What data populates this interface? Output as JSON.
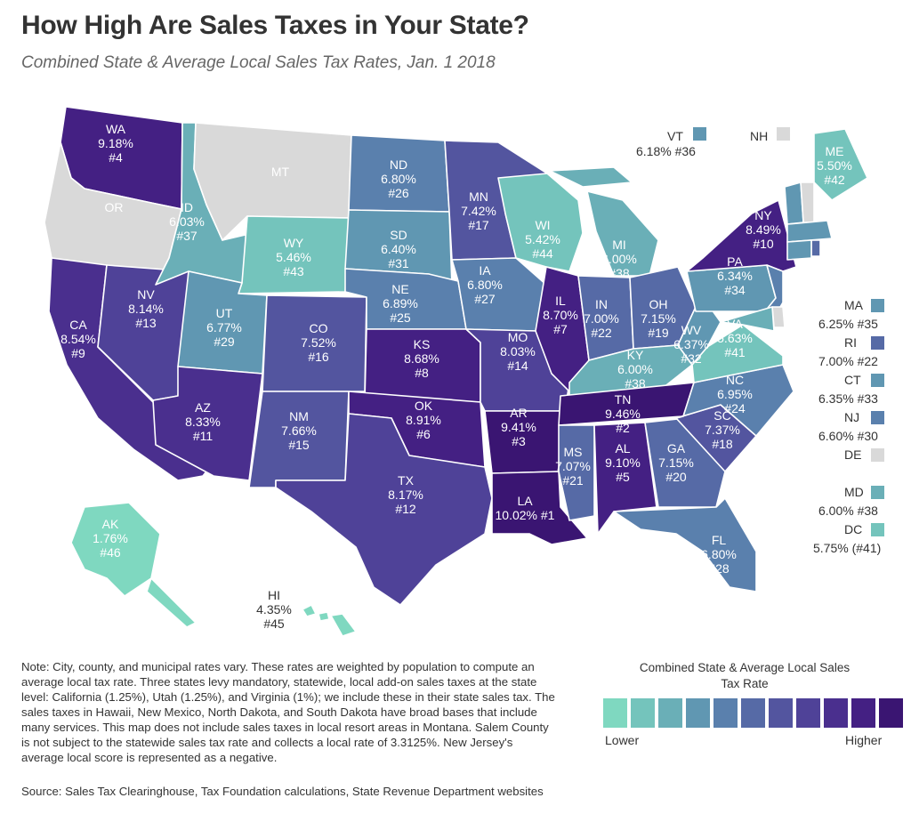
{
  "title": "How High Are Sales Taxes in Your State?",
  "subtitle": "Combined State & Average Local Sales Tax Rates, Jan. 1 2018",
  "note": "Note: City, county, and municipal rates vary. These rates are weighted by population to compute an average local tax rate. Three states levy mandatory, statewide, local add-on sales taxes at the state level: California (1.25%), Utah (1.25%), and Virginia (1%); we include these in their state sales tax. The sales taxes in Hawaii, New Mexico, North Dakota, and South Dakota have broad bases that include many services. This map does not include sales taxes in local resort areas in Montana. Salem County is not subject to the statewide sales tax rate and collects a local rate of 3.3125%. New Jersey's average local score is represented as a negative.",
  "source": "Source: Sales Tax Clearinghouse, Tax Foundation calculations, State Revenue Department websites",
  "legend": {
    "title": "Combined State & Average Local Sales Tax Rate",
    "low": "Lower",
    "high": "Higher",
    "colors": [
      "#7fd8c0",
      "#74c4bc",
      "#6aafb7",
      "#6097b2",
      "#5a80ad",
      "#566aa6",
      "#53559f",
      "#4f4298",
      "#4a2f8e",
      "#442083",
      "#3a1572"
    ]
  },
  "no_tax_color": "#d9d9d9",
  "states": [
    {
      "abbr": "WA",
      "rate": "9.18%",
      "rank": "#4",
      "level": 9
    },
    {
      "abbr": "OR",
      "rate": "",
      "rank": "",
      "level": -1
    },
    {
      "abbr": "CA",
      "rate": "8.54%",
      "rank": "#9",
      "level": 8
    },
    {
      "abbr": "NV",
      "rate": "8.14%",
      "rank": "#13",
      "level": 7
    },
    {
      "abbr": "ID",
      "rate": "6.03%",
      "rank": "#37",
      "level": 2
    },
    {
      "abbr": "MT",
      "rate": "",
      "rank": "",
      "level": -1
    },
    {
      "abbr": "WY",
      "rate": "5.46%",
      "rank": "#43",
      "level": 1
    },
    {
      "abbr": "UT",
      "rate": "6.77%",
      "rank": "#29",
      "level": 3
    },
    {
      "abbr": "AZ",
      "rate": "8.33%",
      "rank": "#11",
      "level": 8
    },
    {
      "abbr": "CO",
      "rate": "7.52%",
      "rank": "#16",
      "level": 6
    },
    {
      "abbr": "NM",
      "rate": "7.66%",
      "rank": "#15",
      "level": 6
    },
    {
      "abbr": "ND",
      "rate": "6.80%",
      "rank": "#26",
      "level": 4
    },
    {
      "abbr": "SD",
      "rate": "6.40%",
      "rank": "#31",
      "level": 3
    },
    {
      "abbr": "NE",
      "rate": "6.89%",
      "rank": "#25",
      "level": 4
    },
    {
      "abbr": "KS",
      "rate": "8.68%",
      "rank": "#8",
      "level": 9
    },
    {
      "abbr": "OK",
      "rate": "8.91%",
      "rank": "#6",
      "level": 9
    },
    {
      "abbr": "TX",
      "rate": "8.17%",
      "rank": "#12",
      "level": 7
    },
    {
      "abbr": "MN",
      "rate": "7.42%",
      "rank": "#17",
      "level": 6
    },
    {
      "abbr": "IA",
      "rate": "6.80%",
      "rank": "#27",
      "level": 4
    },
    {
      "abbr": "MO",
      "rate": "8.03%",
      "rank": "#14",
      "level": 7
    },
    {
      "abbr": "AR",
      "rate": "9.41%",
      "rank": "#3",
      "level": 10
    },
    {
      "abbr": "LA",
      "rate": "10.02%",
      "rank": "#1",
      "level": 10
    },
    {
      "abbr": "WI",
      "rate": "5.42%",
      "rank": "#44",
      "level": 1
    },
    {
      "abbr": "IL",
      "rate": "8.70%",
      "rank": "#7",
      "level": 9
    },
    {
      "abbr": "MI",
      "rate": "6.00%",
      "rank": "#38",
      "level": 2
    },
    {
      "abbr": "IN",
      "rate": "7.00%",
      "rank": "#22",
      "level": 5
    },
    {
      "abbr": "OH",
      "rate": "7.15%",
      "rank": "#19",
      "level": 5
    },
    {
      "abbr": "KY",
      "rate": "6.00%",
      "rank": "#38",
      "level": 2
    },
    {
      "abbr": "TN",
      "rate": "9.46%",
      "rank": "#2",
      "level": 10
    },
    {
      "abbr": "MS",
      "rate": "7.07%",
      "rank": "#21",
      "level": 5
    },
    {
      "abbr": "AL",
      "rate": "9.10%",
      "rank": "#5",
      "level": 9
    },
    {
      "abbr": "GA",
      "rate": "7.15%",
      "rank": "#20",
      "level": 5
    },
    {
      "abbr": "FL",
      "rate": "6.80%",
      "rank": "#28",
      "level": 4
    },
    {
      "abbr": "SC",
      "rate": "7.37%",
      "rank": "#18",
      "level": 6
    },
    {
      "abbr": "NC",
      "rate": "6.95%",
      "rank": "#24",
      "level": 4
    },
    {
      "abbr": "VA",
      "rate": "5.63%",
      "rank": "#41",
      "level": 1
    },
    {
      "abbr": "WV",
      "rate": "6.37%",
      "rank": "#32",
      "level": 3
    },
    {
      "abbr": "PA",
      "rate": "6.34%",
      "rank": "#34",
      "level": 3
    },
    {
      "abbr": "NY",
      "rate": "8.49%",
      "rank": "#10",
      "level": 9
    },
    {
      "abbr": "ME",
      "rate": "5.50%",
      "rank": "#42",
      "level": 1
    },
    {
      "abbr": "AK",
      "rate": "1.76%",
      "rank": "#46",
      "level": 0
    },
    {
      "abbr": "HI",
      "rate": "4.35%",
      "rank": "#45",
      "level": 0
    }
  ],
  "small_states": [
    {
      "abbr": "VT",
      "value": "6.18% #36",
      "level": 3
    },
    {
      "abbr": "NH",
      "value": "",
      "level": -1
    },
    {
      "abbr": "MA",
      "value": "6.25% #35",
      "level": 3
    },
    {
      "abbr": "RI",
      "value": "7.00% #22",
      "level": 5
    },
    {
      "abbr": "CT",
      "value": "6.35% #33",
      "level": 3
    },
    {
      "abbr": "NJ",
      "value": "6.60% #30",
      "level": 4
    },
    {
      "abbr": "DE",
      "value": "",
      "level": -1
    },
    {
      "abbr": "MD",
      "value": "6.00% #38",
      "level": 2
    },
    {
      "abbr": "DC",
      "value": "5.75% (#41)",
      "level": 1
    }
  ]
}
